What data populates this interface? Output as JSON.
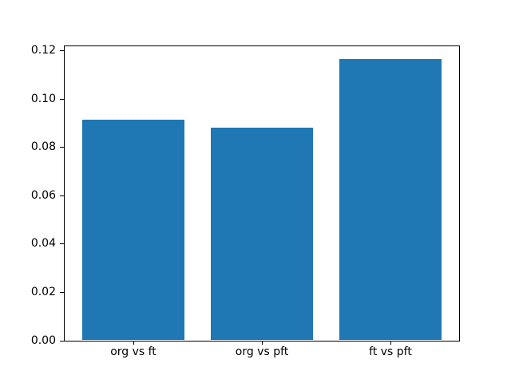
{
  "chart_data": {
    "type": "bar",
    "categories": [
      "org vs ft",
      "org vs pft",
      "ft vs pft"
    ],
    "values": [
      0.0915,
      0.0881,
      0.1165
    ],
    "title": "",
    "xlabel": "",
    "ylabel": "",
    "ylim": [
      0,
      0.1222
    ],
    "xlim": [
      -0.54,
      2.54
    ],
    "bar_width": 0.8,
    "yticks": [
      0.0,
      0.02,
      0.04,
      0.06,
      0.08,
      0.1,
      0.12
    ],
    "ytick_labels": [
      "0.00",
      "0.02",
      "0.04",
      "0.06",
      "0.08",
      "0.10",
      "0.12"
    ],
    "grid": false,
    "legend_position": "none",
    "bar_color": "#1f77b4",
    "frame_color": "#000000",
    "background_color": "#ffffff"
  }
}
